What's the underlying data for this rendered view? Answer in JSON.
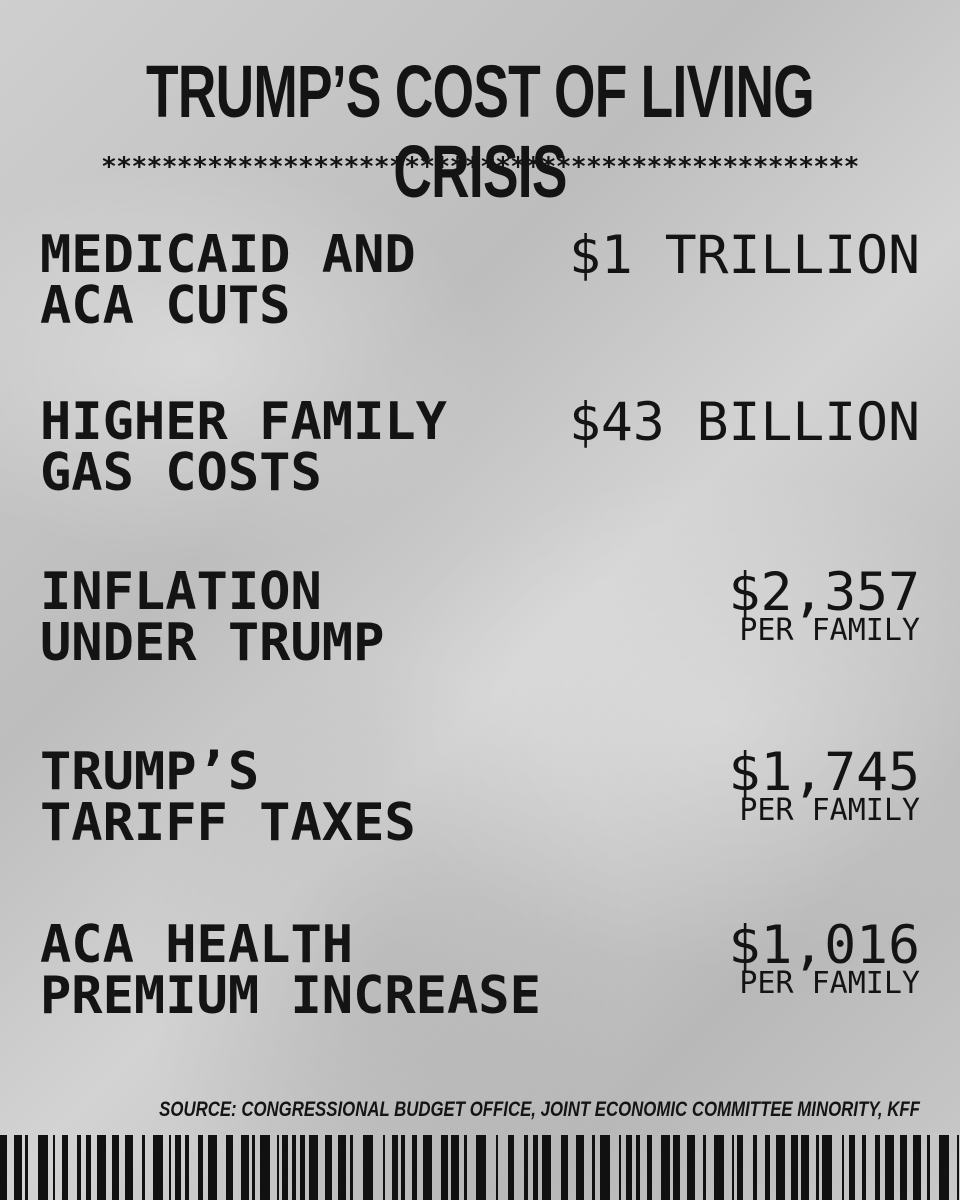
{
  "header": {
    "title": "TRUMP’S COST OF LIVING CRISIS",
    "divider": "**************************************************"
  },
  "items": [
    {
      "label": [
        "MEDICAID AND",
        "ACA CUTS"
      ],
      "amount": "$1 TRILLION"
    },
    {
      "label": [
        "HIGHER FAMILY",
        "GAS COSTS"
      ],
      "amount": "$43 BILLION"
    },
    {
      "label": [
        "INFLATION",
        "UNDER TRUMP"
      ],
      "amount": "$2,357",
      "unit": "PER FAMILY"
    },
    {
      "label": [
        "TRUMP’S",
        "TARIFF TAXES"
      ],
      "amount": "$1,745",
      "unit": "PER FAMILY"
    },
    {
      "label": [
        "ACA HEALTH",
        "PREMIUM INCREASE"
      ],
      "amount": "$1,016",
      "unit": "PER FAMILY"
    }
  ],
  "footer": {
    "source": "SOURCE: CONGRESSIONAL BUDGET OFFICE, JOINT ECONOMIC COMMITTEE MINORITY, KFF"
  }
}
